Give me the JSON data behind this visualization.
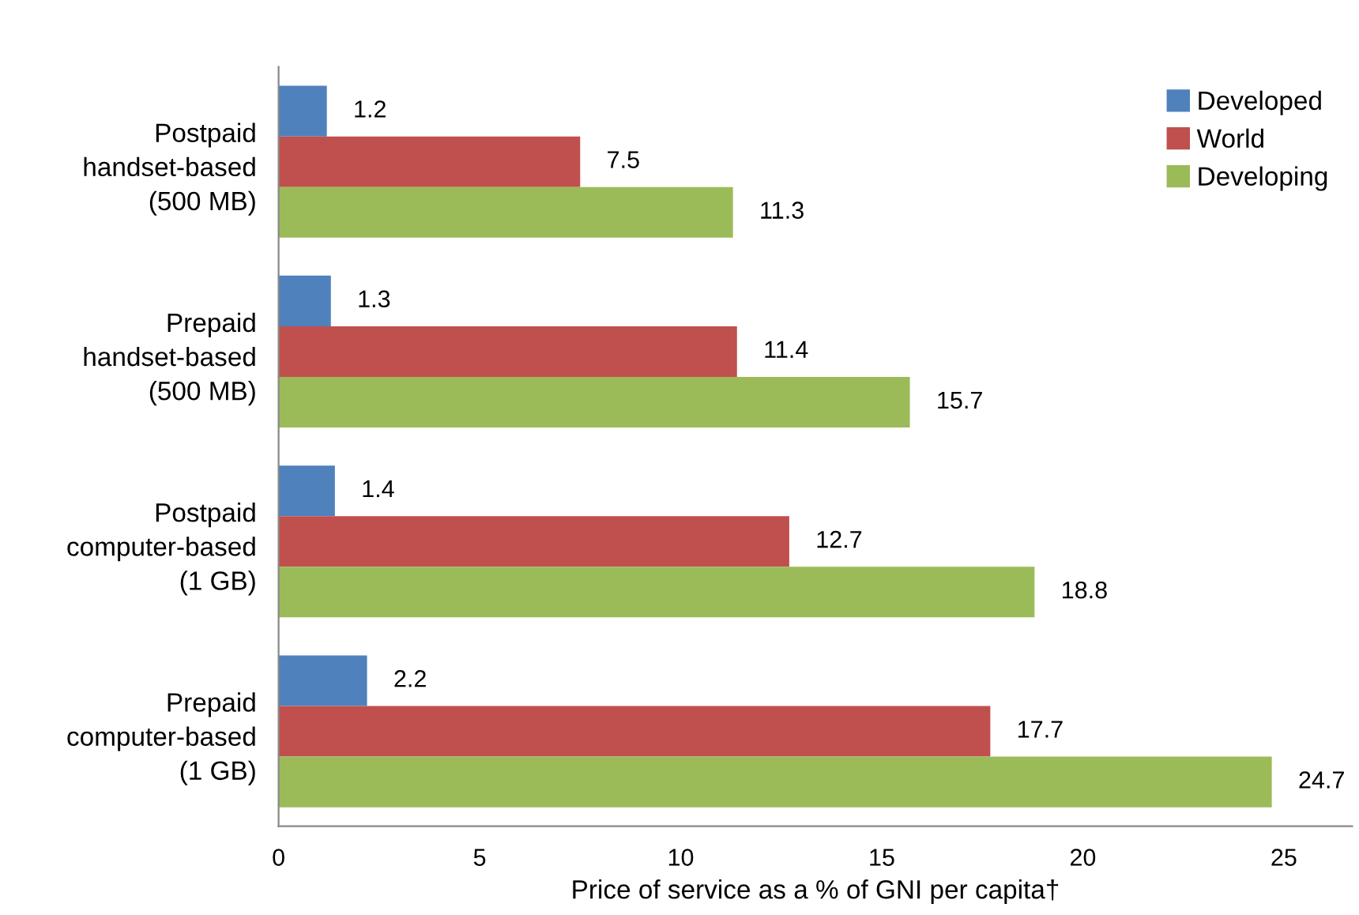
{
  "chart_data": {
    "type": "bar",
    "orientation": "horizontal",
    "xlabel": "Price of service as a % of GNI per capita†",
    "categories": [
      "Postpaid\nhandset-based\n(500 MB)",
      "Prepaid\nhandset-based\n(500 MB)",
      "Postpaid\ncomputer-based\n(1 GB)",
      "Prepaid\ncomputer-based\n(1 GB)"
    ],
    "series": [
      {
        "name": "Developed",
        "color": "#4f81bd",
        "values": [
          1.2,
          1.3,
          1.4,
          2.2
        ]
      },
      {
        "name": "World",
        "color": "#c0504d",
        "values": [
          7.5,
          11.4,
          12.7,
          17.7
        ]
      },
      {
        "name": "Developing",
        "color": "#9bbb59",
        "values": [
          11.3,
          15.7,
          18.8,
          24.7
        ]
      }
    ],
    "xlim": [
      0,
      26.7
    ],
    "xticks": [
      0,
      5,
      10,
      15,
      20,
      25
    ],
    "grid": false,
    "legend": "top right",
    "data_labels": true
  }
}
